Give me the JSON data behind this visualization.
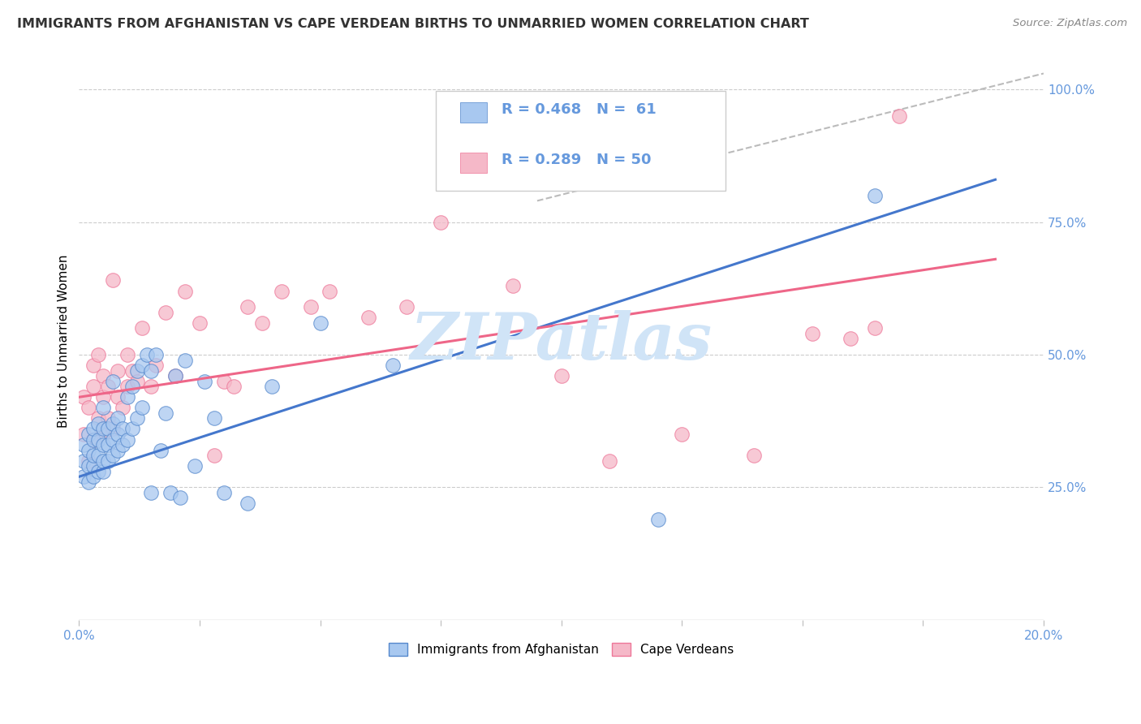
{
  "title": "IMMIGRANTS FROM AFGHANISTAN VS CAPE VERDEAN BIRTHS TO UNMARRIED WOMEN CORRELATION CHART",
  "source": "Source: ZipAtlas.com",
  "ylabel": "Births to Unmarried Women",
  "ylabel_right_ticks": [
    "100.0%",
    "75.0%",
    "50.0%",
    "25.0%"
  ],
  "ylabel_right_vals": [
    1.0,
    0.75,
    0.5,
    0.25
  ],
  "legend_r1": "R = 0.468",
  "legend_n1": "N =  61",
  "legend_r2": "R = 0.289",
  "legend_n2": "N = 50",
  "legend_label1": "Immigrants from Afghanistan",
  "legend_label2": "Cape Verdeans",
  "blue_color": "#a8c8f0",
  "pink_color": "#f5b8c8",
  "blue_edge_color": "#5588cc",
  "pink_edge_color": "#ee7799",
  "blue_line_color": "#4477cc",
  "pink_line_color": "#ee6688",
  "dashed_line_color": "#bbbbbb",
  "title_color": "#333333",
  "source_color": "#888888",
  "axis_tick_color": "#6699dd",
  "watermark_color": "#d0e4f7",
  "xlim": [
    0.0,
    0.2
  ],
  "ylim": [
    0.0,
    1.05
  ],
  "blue_scatter_x": [
    0.001,
    0.001,
    0.001,
    0.002,
    0.002,
    0.002,
    0.002,
    0.003,
    0.003,
    0.003,
    0.003,
    0.003,
    0.004,
    0.004,
    0.004,
    0.004,
    0.005,
    0.005,
    0.005,
    0.005,
    0.005,
    0.006,
    0.006,
    0.006,
    0.007,
    0.007,
    0.007,
    0.007,
    0.008,
    0.008,
    0.008,
    0.009,
    0.009,
    0.01,
    0.01,
    0.011,
    0.011,
    0.012,
    0.012,
    0.013,
    0.013,
    0.014,
    0.015,
    0.015,
    0.016,
    0.017,
    0.018,
    0.019,
    0.02,
    0.021,
    0.022,
    0.024,
    0.026,
    0.028,
    0.03,
    0.035,
    0.04,
    0.05,
    0.065,
    0.12,
    0.165
  ],
  "blue_scatter_y": [
    0.3,
    0.27,
    0.33,
    0.26,
    0.29,
    0.32,
    0.35,
    0.27,
    0.29,
    0.31,
    0.34,
    0.36,
    0.28,
    0.31,
    0.34,
    0.37,
    0.28,
    0.3,
    0.33,
    0.36,
    0.4,
    0.3,
    0.33,
    0.36,
    0.31,
    0.34,
    0.37,
    0.45,
    0.32,
    0.35,
    0.38,
    0.33,
    0.36,
    0.34,
    0.42,
    0.36,
    0.44,
    0.38,
    0.47,
    0.4,
    0.48,
    0.5,
    0.24,
    0.47,
    0.5,
    0.32,
    0.39,
    0.24,
    0.46,
    0.23,
    0.49,
    0.29,
    0.45,
    0.38,
    0.24,
    0.22,
    0.44,
    0.56,
    0.48,
    0.19,
    0.8
  ],
  "pink_scatter_x": [
    0.001,
    0.001,
    0.002,
    0.002,
    0.003,
    0.003,
    0.003,
    0.004,
    0.004,
    0.005,
    0.005,
    0.005,
    0.006,
    0.006,
    0.007,
    0.007,
    0.008,
    0.008,
    0.009,
    0.01,
    0.01,
    0.011,
    0.012,
    0.013,
    0.015,
    0.016,
    0.018,
    0.02,
    0.022,
    0.025,
    0.028,
    0.03,
    0.032,
    0.035,
    0.038,
    0.042,
    0.048,
    0.052,
    0.06,
    0.068,
    0.075,
    0.09,
    0.11,
    0.125,
    0.14,
    0.152,
    0.16,
    0.165,
    0.17,
    0.1
  ],
  "pink_scatter_y": [
    0.35,
    0.42,
    0.3,
    0.4,
    0.34,
    0.44,
    0.48,
    0.38,
    0.5,
    0.35,
    0.42,
    0.46,
    0.38,
    0.44,
    0.36,
    0.64,
    0.42,
    0.47,
    0.4,
    0.44,
    0.5,
    0.47,
    0.45,
    0.55,
    0.44,
    0.48,
    0.58,
    0.46,
    0.62,
    0.56,
    0.31,
    0.45,
    0.44,
    0.59,
    0.56,
    0.62,
    0.59,
    0.62,
    0.57,
    0.59,
    0.75,
    0.63,
    0.3,
    0.35,
    0.31,
    0.54,
    0.53,
    0.55,
    0.95,
    0.46
  ],
  "blue_line_x": [
    0.0,
    0.19
  ],
  "blue_line_y": [
    0.27,
    0.83
  ],
  "pink_line_x": [
    0.0,
    0.19
  ],
  "pink_line_y": [
    0.42,
    0.68
  ],
  "dashed_line_x": [
    0.095,
    0.2
  ],
  "dashed_line_y": [
    0.79,
    1.03
  ],
  "x_tick_positions": [
    0.0,
    0.025,
    0.05,
    0.075,
    0.1,
    0.125,
    0.15,
    0.175,
    0.2
  ],
  "x_tick_show_label": [
    true,
    false,
    false,
    false,
    false,
    false,
    false,
    false,
    true
  ]
}
